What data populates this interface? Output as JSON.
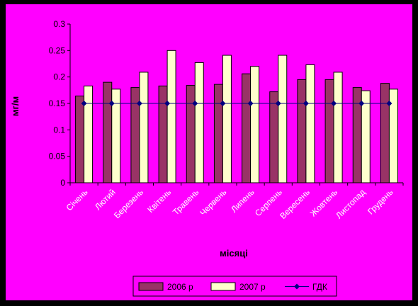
{
  "chart_data": {
    "type": "bar",
    "categories": [
      "Січень",
      "Лютий",
      "Березень",
      "Квітень",
      "Травень",
      "Червень",
      "Липень",
      "Серпень",
      "Вересень",
      "Жовтень",
      "Листопад",
      "Грудень"
    ],
    "series": [
      {
        "name": "2006 р",
        "type": "bar",
        "color": "#993366",
        "values": [
          0.164,
          0.19,
          0.18,
          0.183,
          0.184,
          0.186,
          0.206,
          0.172,
          0.195,
          0.195,
          0.18,
          0.188
        ]
      },
      {
        "name": "2007 р",
        "type": "bar",
        "color": "#ffffcc",
        "values": [
          0.183,
          0.177,
          0.209,
          0.25,
          0.227,
          0.241,
          0.22,
          0.241,
          0.223,
          0.209,
          0.174,
          0.177
        ]
      },
      {
        "name": "ГДК",
        "type": "line",
        "color": "#000080",
        "values": [
          0.15,
          0.15,
          0.15,
          0.15,
          0.15,
          0.15,
          0.15,
          0.15,
          0.15,
          0.15,
          0.15,
          0.15
        ]
      }
    ],
    "yticks": [
      "0",
      "0.05",
      "0.1",
      "0.15",
      "0.2",
      "0.25",
      "0.3"
    ],
    "ylim": [
      0,
      0.3
    ],
    "xlabel": "місяці",
    "ylabel": "мг/м",
    "grid": false,
    "legend_position": "bottom"
  }
}
